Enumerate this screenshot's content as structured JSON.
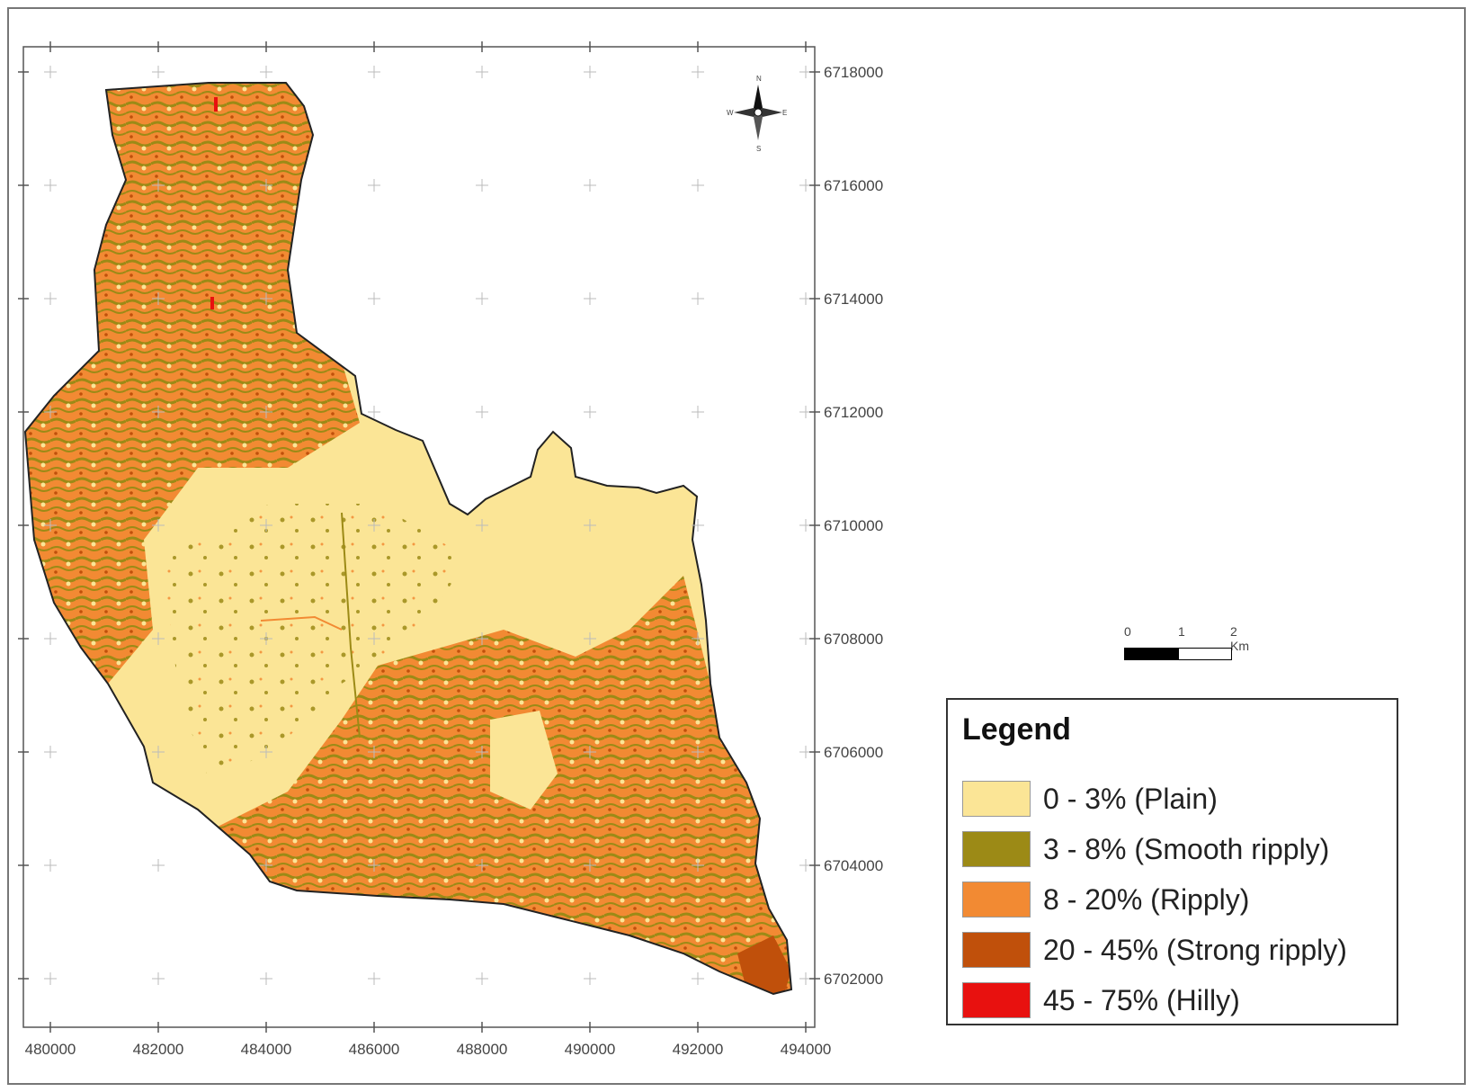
{
  "map": {
    "x_ticks": [
      "480000",
      "482000",
      "484000",
      "486000",
      "488000",
      "490000",
      "492000",
      "494000"
    ],
    "y_ticks": [
      "6718000",
      "6716000",
      "6714000",
      "6712000",
      "6710000",
      "6708000",
      "6706000",
      "6704000",
      "6702000"
    ]
  },
  "north_arrow": {
    "icon": "north-arrow-icon",
    "n": "N",
    "s": "S",
    "e": "E",
    "w": "W"
  },
  "scale_bar": {
    "labels": [
      "0",
      "1",
      "2 Km"
    ]
  },
  "legend": {
    "title": "Legend",
    "items": [
      {
        "label": "0 - 3% (Plain)",
        "color": "#fbe596"
      },
      {
        "label": "3 - 8% (Smooth ripply)",
        "color": "#9c8a16"
      },
      {
        "label": "8 - 20% (Ripply)",
        "color": "#f28a33"
      },
      {
        "label": "20 - 45% (Strong ripply)",
        "color": "#c0500b"
      },
      {
        "label": "45 - 75% (Hilly)",
        "color": "#e8110f"
      }
    ]
  }
}
